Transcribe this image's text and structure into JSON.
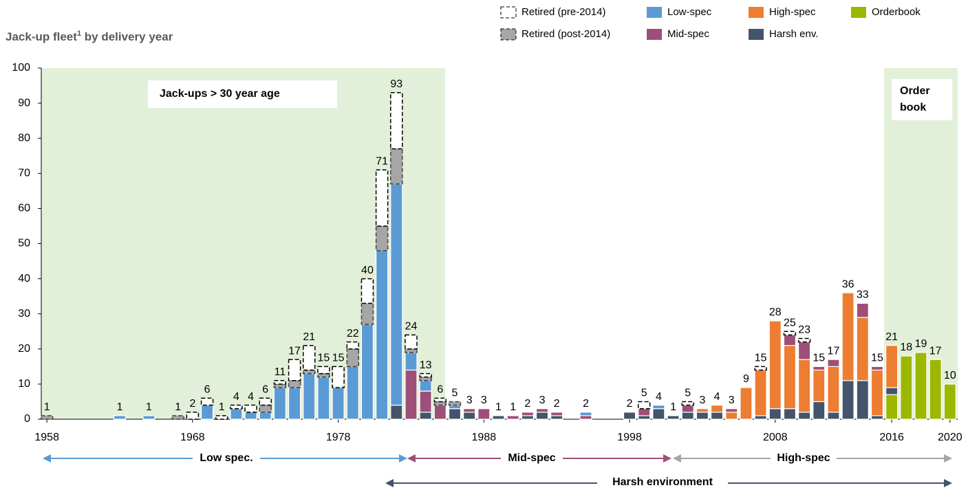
{
  "chart_data": {
    "type": "bar",
    "stacked": true,
    "title_main": "Jack-up fleet",
    "title_note": "1",
    "title_rest": " by delivery year",
    "x": [
      1958,
      1963,
      1965,
      1967,
      1968,
      1969,
      1970,
      1971,
      1972,
      1973,
      1974,
      1975,
      1976,
      1977,
      1978,
      1979,
      1980,
      1981,
      1982,
      1983,
      1984,
      1985,
      1986,
      1987,
      1988,
      1989,
      1990,
      1991,
      1992,
      1993,
      1995,
      1998,
      1999,
      2000,
      2001,
      2002,
      2003,
      2004,
      2005,
      2006,
      2007,
      2008,
      2009,
      2010,
      2011,
      2012,
      2013,
      2014,
      2015,
      2016,
      2017,
      2018,
      2019,
      2020
    ],
    "series": [
      {
        "name": "Orderbook",
        "color": "#9bb700",
        "values": [
          null,
          null,
          null,
          null,
          null,
          null,
          null,
          null,
          null,
          null,
          null,
          null,
          null,
          null,
          null,
          null,
          null,
          null,
          null,
          null,
          null,
          null,
          null,
          null,
          null,
          null,
          null,
          null,
          null,
          null,
          null,
          null,
          null,
          null,
          null,
          null,
          null,
          null,
          null,
          null,
          null,
          null,
          null,
          null,
          null,
          null,
          null,
          null,
          null,
          7,
          18,
          19,
          17,
          10
        ]
      },
      {
        "name": "Harsh env.",
        "color": "#44546a",
        "values": [
          null,
          null,
          null,
          null,
          null,
          null,
          null,
          null,
          null,
          null,
          null,
          null,
          null,
          null,
          null,
          null,
          null,
          null,
          4,
          null,
          2,
          null,
          3,
          2,
          null,
          1,
          null,
          1,
          2,
          1,
          null,
          2,
          1,
          3,
          1,
          2,
          2,
          2,
          null,
          null,
          1,
          3,
          3,
          2,
          5,
          2,
          11,
          11,
          1,
          2,
          null,
          null,
          null,
          null
        ]
      },
      {
        "name": "High-spec",
        "color": "#ed7d31",
        "values": [
          null,
          null,
          null,
          null,
          null,
          null,
          null,
          null,
          null,
          null,
          null,
          null,
          null,
          null,
          null,
          null,
          null,
          null,
          null,
          null,
          null,
          null,
          null,
          null,
          null,
          null,
          null,
          null,
          null,
          null,
          null,
          null,
          null,
          null,
          null,
          null,
          1,
          2,
          2,
          9,
          13,
          25,
          18,
          15,
          9,
          13,
          25,
          18,
          13,
          12,
          null,
          null,
          null,
          null
        ]
      },
      {
        "name": "Mid-spec",
        "color": "#9e4f78",
        "values": [
          null,
          null,
          null,
          null,
          null,
          null,
          null,
          null,
          null,
          null,
          null,
          null,
          null,
          null,
          null,
          null,
          null,
          null,
          null,
          14,
          6,
          4,
          null,
          1,
          3,
          null,
          1,
          1,
          1,
          1,
          1,
          null,
          2,
          null,
          null,
          2,
          null,
          null,
          1,
          null,
          null,
          null,
          3,
          5,
          1,
          2,
          null,
          4,
          1,
          null,
          null,
          null,
          null,
          null
        ]
      },
      {
        "name": "Low-spec",
        "color": "#5b9bd5",
        "values": [
          null,
          1,
          1,
          null,
          null,
          4,
          null,
          3,
          2,
          2,
          9,
          9,
          13,
          12,
          9,
          15,
          27,
          48,
          63,
          5,
          3,
          null,
          1,
          null,
          null,
          null,
          null,
          null,
          null,
          null,
          1,
          null,
          null,
          1,
          null,
          null,
          null,
          null,
          null,
          null,
          null,
          null,
          null,
          null,
          null,
          null,
          null,
          null,
          null,
          null,
          null,
          null,
          null,
          null
        ]
      },
      {
        "name": "Retired (post-2014)",
        "color": "#a6a6a6",
        "outline": "dashed",
        "values": [
          1,
          null,
          null,
          1,
          null,
          null,
          null,
          null,
          null,
          2,
          1,
          2,
          1,
          1,
          null,
          5,
          6,
          7,
          10,
          1,
          1,
          1,
          1,
          null,
          null,
          null,
          null,
          null,
          null,
          null,
          null,
          null,
          null,
          null,
          null,
          null,
          null,
          null,
          null,
          null,
          null,
          null,
          null,
          null,
          null,
          null,
          null,
          null,
          null,
          null,
          null,
          null,
          null,
          null
        ]
      },
      {
        "name": "Retired (pre-2014)",
        "color": "#ffffff",
        "outline": "dashed",
        "values": [
          null,
          null,
          null,
          null,
          2,
          2,
          1,
          1,
          2,
          2,
          1,
          6,
          7,
          2,
          6,
          2,
          7,
          16,
          16,
          4,
          1,
          1,
          null,
          null,
          null,
          null,
          null,
          null,
          null,
          null,
          null,
          null,
          2,
          null,
          null,
          1,
          null,
          null,
          null,
          null,
          1,
          null,
          1,
          1,
          null,
          null,
          null,
          null,
          null,
          null,
          null,
          null,
          null,
          null
        ]
      }
    ],
    "totals": [
      1,
      1,
      1,
      1,
      2,
      6,
      1,
      4,
      4,
      6,
      11,
      17,
      21,
      15,
      15,
      22,
      40,
      71,
      93,
      24,
      13,
      6,
      5,
      3,
      3,
      1,
      1,
      2,
      3,
      2,
      2,
      2,
      5,
      4,
      1,
      5,
      3,
      4,
      3,
      9,
      15,
      28,
      25,
      23,
      15,
      17,
      36,
      33,
      15,
      21,
      18,
      19,
      17,
      10
    ],
    "xlim": [
      1957,
      2021
    ],
    "xticks": [
      1958,
      1968,
      1978,
      1988,
      1998,
      2008,
      2016,
      2020
    ],
    "ylim": [
      0,
      100
    ],
    "yticks": [
      0,
      10,
      20,
      30,
      40,
      50,
      60,
      70,
      80,
      90,
      100
    ],
    "grid": false,
    "annotation_age": "Jack-ups > 30 year age",
    "annotation_orderbook": [
      "Order",
      "book"
    ],
    "spans": {
      "low": "Low spec.",
      "mid": "Mid-spec",
      "high": "High-spec",
      "harsh": "Harsh environment"
    }
  }
}
